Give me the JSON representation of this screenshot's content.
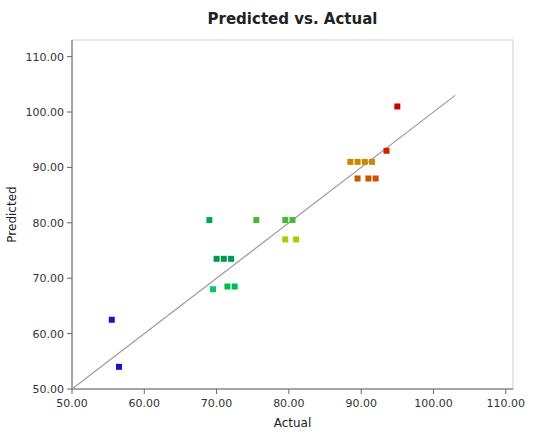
{
  "chart_data": {
    "type": "scatter",
    "title": "Predicted vs. Actual",
    "xlabel": "Actual",
    "ylabel": "Predicted",
    "x": [
      55.5,
      56.5,
      69.0,
      70.0,
      71.0,
      72.0,
      69.5,
      71.5,
      72.5,
      75.5,
      79.5,
      80.5,
      79.5,
      81.0,
      88.5,
      89.5,
      90.5,
      91.5,
      89.5,
      91.0,
      92.0,
      93.5,
      95.0
    ],
    "values": [
      62.5,
      54.0,
      80.5,
      73.5,
      73.5,
      73.5,
      68.0,
      68.5,
      68.5,
      80.5,
      80.5,
      80.5,
      77.0,
      77.0,
      91.0,
      91.0,
      91.0,
      91.0,
      88.0,
      88.0,
      88.0,
      93.0,
      101.0
    ],
    "colors": [
      "#1515c8",
      "#1515c8",
      "#00aa55",
      "#009955",
      "#009955",
      "#009955",
      "#00cc66",
      "#00bb55",
      "#00bb55",
      "#44bb33",
      "#44bb33",
      "#44bb33",
      "#aacc00",
      "#aacc00",
      "#cc8800",
      "#cc8800",
      "#cc8800",
      "#cc8800",
      "#cc5500",
      "#cc5500",
      "#cc5500",
      "#cc2200",
      "#cc0000"
    ],
    "marker": "square",
    "ref_line": {
      "x": [
        50,
        103
      ],
      "y": [
        50,
        103
      ],
      "color": "#999999"
    },
    "xlim": [
      50.0,
      111.0
    ],
    "ylim": [
      50.0,
      113.0
    ],
    "xticks": [
      {
        "value": 50,
        "label": "50.00"
      },
      {
        "value": 60,
        "label": "60.00"
      },
      {
        "value": 70,
        "label": "70.00"
      },
      {
        "value": 80,
        "label": "80.00"
      },
      {
        "value": 90,
        "label": "90.00"
      },
      {
        "value": 100,
        "label": "100.00"
      },
      {
        "value": 110,
        "label": "110.00"
      }
    ],
    "yticks": [
      {
        "value": 50,
        "label": "50.00"
      },
      {
        "value": 60,
        "label": "60.00"
      },
      {
        "value": 70,
        "label": "70.00"
      },
      {
        "value": 80,
        "label": "80.00"
      },
      {
        "value": 90,
        "label": "90.00"
      },
      {
        "value": 100,
        "label": "100.00"
      },
      {
        "value": 110,
        "label": "110.00"
      }
    ],
    "grid": false
  }
}
